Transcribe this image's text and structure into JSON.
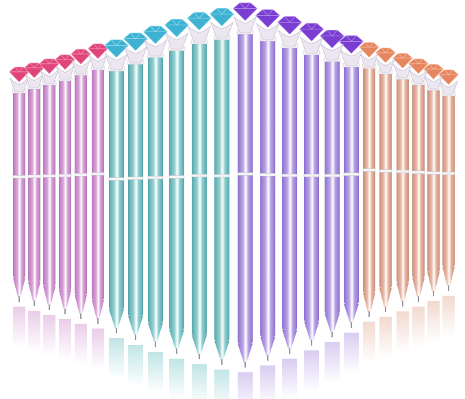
{
  "image": {
    "subject": "diamond-top-ballpoint-pens",
    "background_color": "#ffffff",
    "pen_groups": [
      {
        "name": "pink",
        "count": 6,
        "body_color": "#d9a3d8",
        "body_shadow": "#b878bd",
        "gem_color": "#e0457a",
        "gem_light": "#f7a0bf"
      },
      {
        "name": "teal",
        "count": 6,
        "body_color": "#8fcfd0",
        "body_shadow": "#5aa7ad",
        "gem_color": "#3fb2d4",
        "gem_light": "#a9e6f0"
      },
      {
        "name": "purple",
        "count": 6,
        "body_color": "#b9a3e6",
        "body_shadow": "#8c72cf",
        "gem_color": "#7a3fd1",
        "gem_light": "#c3a2f4"
      },
      {
        "name": "rose-gold",
        "count": 6,
        "body_color": "#e8b9a6",
        "body_shadow": "#c98f7c",
        "gem_color": "#e68660",
        "gem_light": "#f7c6ae"
      }
    ],
    "claw_color": "#ece6f0",
    "band_color": "#f4f4f6"
  }
}
